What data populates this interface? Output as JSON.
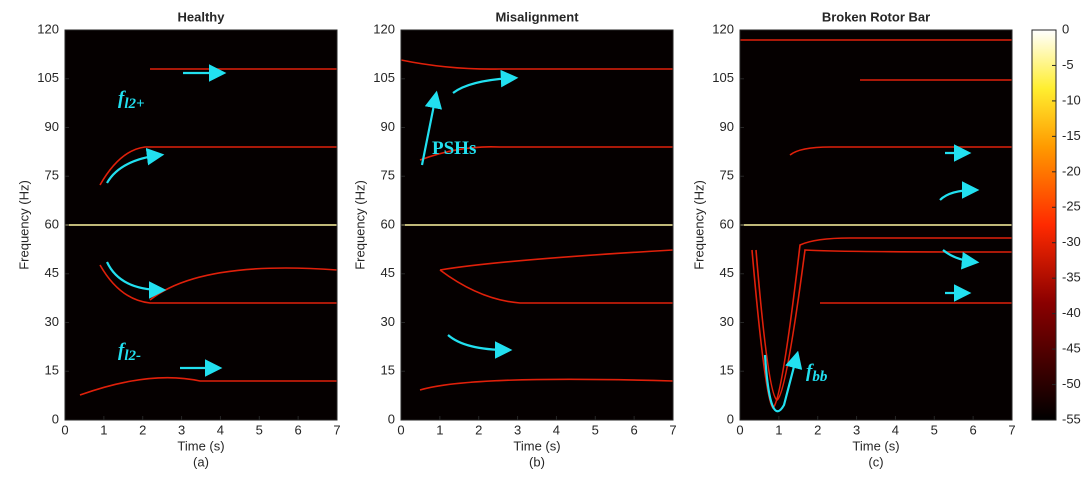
{
  "chart_data": [
    {
      "type": "spectrogram",
      "title": "Healthy",
      "xlabel": "Time (s)",
      "ylabel": "Frequency (Hz)",
      "caption": "(a)",
      "xlim": [
        0,
        7
      ],
      "xticks": [
        0,
        1,
        2,
        3,
        4,
        5,
        6,
        7
      ],
      "ylim": [
        0,
        120
      ],
      "yticks": [
        0,
        15,
        30,
        45,
        60,
        75,
        90,
        105,
        120
      ],
      "annotations": [
        {
          "text": "f",
          "sub": "l2+"
        },
        {
          "text": "f",
          "sub": "l2-"
        }
      ]
    },
    {
      "type": "spectrogram",
      "title": "Misalignment",
      "xlabel": "Time (s)",
      "ylabel": "Frequency (Hz)",
      "caption": "(b)",
      "xlim": [
        0,
        7
      ],
      "xticks": [
        0,
        1,
        2,
        3,
        4,
        5,
        6,
        7
      ],
      "ylim": [
        0,
        120
      ],
      "yticks": [
        0,
        15,
        30,
        45,
        60,
        75,
        90,
        105,
        120
      ],
      "annotations": [
        {
          "text": "PSHs"
        }
      ]
    },
    {
      "type": "spectrogram",
      "title": "Broken Rotor Bar",
      "xlabel": "Time (s)",
      "ylabel": "Frequency (Hz)",
      "caption": "(c)",
      "xlim": [
        0,
        7
      ],
      "xticks": [
        0,
        1,
        2,
        3,
        4,
        5,
        6,
        7
      ],
      "ylim": [
        0,
        120
      ],
      "yticks": [
        0,
        15,
        30,
        45,
        60,
        75,
        90,
        105,
        120
      ],
      "annotations": [
        {
          "text": "f",
          "sub": "bb"
        }
      ],
      "colorbar": {
        "lim": [
          -55,
          0
        ],
        "ticks": [
          0,
          -5,
          -10,
          -15,
          -20,
          -25,
          -30,
          -35,
          -40,
          -45,
          -50,
          -55
        ]
      }
    }
  ]
}
